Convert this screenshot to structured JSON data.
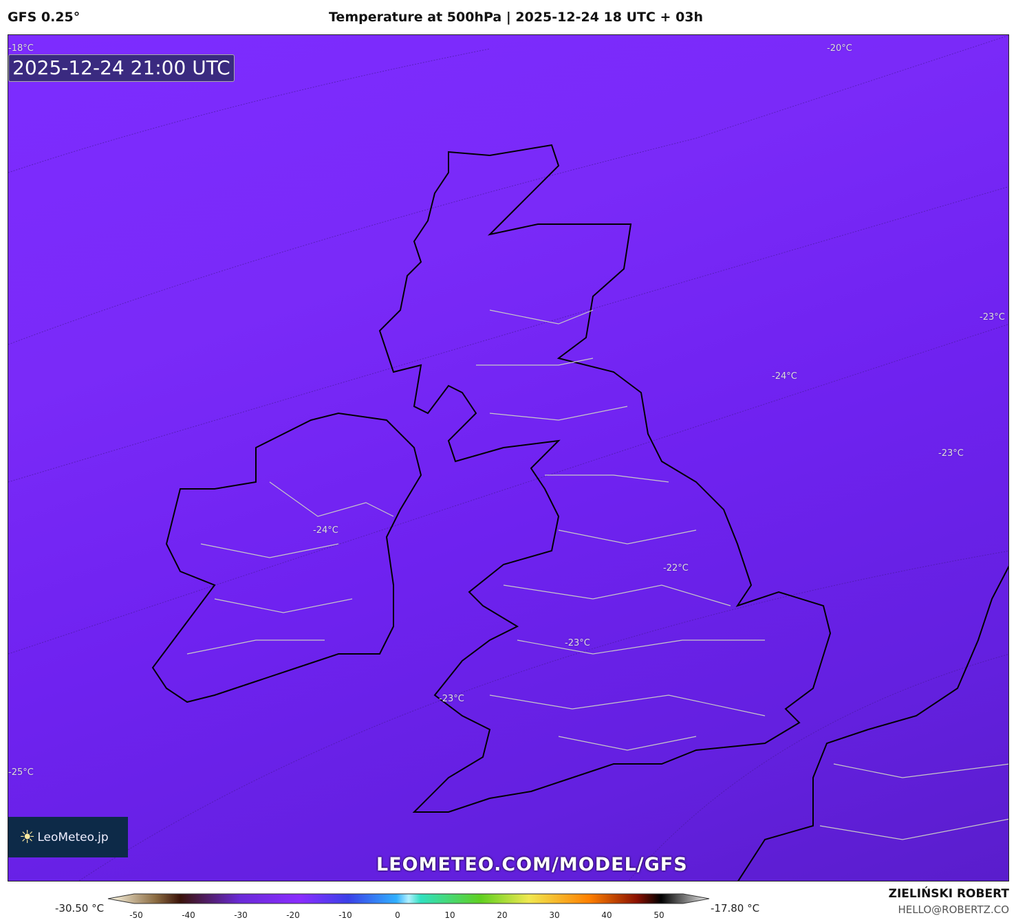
{
  "header": {
    "model": "GFS 0.25°",
    "title": "Temperature at 500hPa | 2025-12-24 18 UTC + 03h"
  },
  "map": {
    "valid_time": "2025-12-24 21:00 UTC",
    "contour_labels": [
      "-18°C",
      "-20°C",
      "-23°C",
      "-24°C",
      "-23°C",
      "-24°C",
      "-22°C",
      "-23°C",
      "-23°C",
      "-25°C"
    ],
    "logo": "LeoMeteo.jp",
    "watermark": "LEOMETEO.COM/MODEL/GFS",
    "colors": {
      "fill": "#7a2af8",
      "coast": "#000000",
      "borders": "#c8c8c8"
    }
  },
  "colorbar": {
    "min_label": "-30.50 °C",
    "max_label": "-17.80 °C",
    "ticks": [
      "-50",
      "-40",
      "-30",
      "-20",
      "-10",
      "0",
      "10",
      "20",
      "30",
      "40",
      "50"
    ],
    "range": [
      -55,
      55
    ]
  },
  "credit": {
    "name": "ZIELIŃSKI ROBERT",
    "email": "HELLO@ROBERTZ.CO"
  }
}
